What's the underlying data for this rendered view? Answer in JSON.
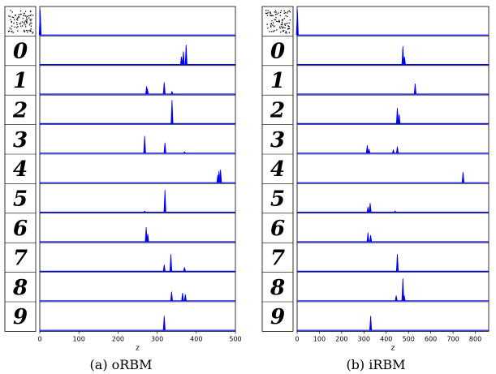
{
  "chart_data": [
    {
      "type": "line",
      "caption": "(a) oRBM",
      "xlabel": "z",
      "xlim": [
        0,
        500
      ],
      "xticks": [
        0,
        100,
        200,
        300,
        400,
        500
      ],
      "row_images": [
        "noise",
        "0",
        "1",
        "2",
        "3",
        "4",
        "5",
        "6",
        "7",
        "8",
        "9"
      ],
      "series": [
        {
          "peaks": [
            {
              "x": 1,
              "h": 0.95
            }
          ]
        },
        {
          "peaks": [
            {
              "x": 362,
              "h": 0.3
            },
            {
              "x": 367,
              "h": 0.5
            },
            {
              "x": 374,
              "h": 0.75
            }
          ]
        },
        {
          "peaks": [
            {
              "x": 273,
              "h": 0.3
            },
            {
              "x": 275,
              "h": 0.2
            },
            {
              "x": 318,
              "h": 0.45
            },
            {
              "x": 338,
              "h": 0.1
            }
          ]
        },
        {
          "peaks": [
            {
              "x": 338,
              "h": 0.9
            }
          ]
        },
        {
          "peaks": [
            {
              "x": 268,
              "h": 0.65
            },
            {
              "x": 320,
              "h": 0.4
            },
            {
              "x": 370,
              "h": 0.05
            }
          ]
        },
        {
          "peaks": [
            {
              "x": 455,
              "h": 0.3
            },
            {
              "x": 458,
              "h": 0.45
            },
            {
              "x": 462,
              "h": 0.5
            }
          ]
        },
        {
          "peaks": [
            {
              "x": 268,
              "h": 0.05
            },
            {
              "x": 320,
              "h": 0.85
            }
          ]
        },
        {
          "peaks": [
            {
              "x": 272,
              "h": 0.55
            },
            {
              "x": 276,
              "h": 0.3
            }
          ]
        },
        {
          "peaks": [
            {
              "x": 318,
              "h": 0.25
            },
            {
              "x": 335,
              "h": 0.65
            },
            {
              "x": 370,
              "h": 0.15
            }
          ]
        },
        {
          "peaks": [
            {
              "x": 337,
              "h": 0.35
            },
            {
              "x": 365,
              "h": 0.3
            },
            {
              "x": 372,
              "h": 0.25
            }
          ]
        },
        {
          "peaks": [
            {
              "x": 318,
              "h": 0.55
            }
          ]
        }
      ]
    },
    {
      "type": "line",
      "caption": "(b) iRBM",
      "xlabel": "z",
      "xlim": [
        0,
        860
      ],
      "xticks": [
        0,
        100,
        200,
        300,
        400,
        500,
        600,
        700,
        800
      ],
      "row_images": [
        "noise",
        "0",
        "1",
        "2",
        "3",
        "4",
        "5",
        "6",
        "7",
        "8",
        "9"
      ],
      "series": [
        {
          "peaks": [
            {
              "x": 1,
              "h": 0.95
            }
          ]
        },
        {
          "peaks": [
            {
              "x": 475,
              "h": 0.7
            },
            {
              "x": 482,
              "h": 0.3
            }
          ]
        },
        {
          "peaks": [
            {
              "x": 530,
              "h": 0.4
            }
          ]
        },
        {
          "peaks": [
            {
              "x": 450,
              "h": 0.6
            },
            {
              "x": 458,
              "h": 0.35
            }
          ]
        },
        {
          "peaks": [
            {
              "x": 315,
              "h": 0.3
            },
            {
              "x": 323,
              "h": 0.15
            },
            {
              "x": 432,
              "h": 0.12
            },
            {
              "x": 450,
              "h": 0.25
            }
          ]
        },
        {
          "peaks": [
            {
              "x": 745,
              "h": 0.4
            }
          ]
        },
        {
          "peaks": [
            {
              "x": 318,
              "h": 0.2
            },
            {
              "x": 328,
              "h": 0.35
            },
            {
              "x": 440,
              "h": 0.05
            }
          ]
        },
        {
          "peaks": [
            {
              "x": 318,
              "h": 0.35
            },
            {
              "x": 330,
              "h": 0.25
            }
          ]
        },
        {
          "peaks": [
            {
              "x": 450,
              "h": 0.65
            }
          ]
        },
        {
          "peaks": [
            {
              "x": 445,
              "h": 0.2
            },
            {
              "x": 475,
              "h": 0.85
            },
            {
              "x": 481,
              "h": 0.2
            }
          ]
        },
        {
          "peaks": [
            {
              "x": 330,
              "h": 0.55
            }
          ]
        }
      ]
    }
  ]
}
